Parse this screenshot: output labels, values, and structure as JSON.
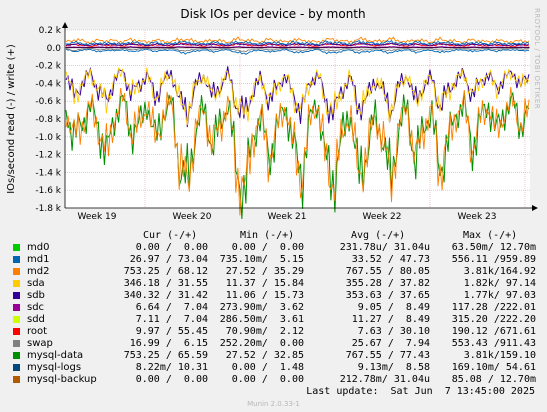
{
  "side_label": "RRDTOOL / TOBI OETIKER",
  "footer": "Munin 2.0.33-1",
  "last_update": "Last update:  Sat Jun  7 13:45:00 2025",
  "legend_headers": {
    "cur": "Cur (-/+)",
    "min": "Min (-/+)",
    "avg": "Avg (-/+)",
    "max": "Max (-/+)"
  },
  "legend": [
    {
      "name": "md0",
      "color": "#00cc00",
      "cur": "0.00 /  0.00",
      "min": "0.00 /  0.00",
      "avg": "231.78u/ 31.04u",
      "max": "63.50m/ 12.70m"
    },
    {
      "name": "md1",
      "color": "#0066b3",
      "cur": "26.97 / 73.04",
      "min": "735.10m/  5.15",
      "avg": "33.52 / 47.73",
      "max": "556.11 /959.89"
    },
    {
      "name": "md2",
      "color": "#ff8000",
      "cur": "753.25 / 68.12",
      "min": "27.52 / 35.29",
      "avg": "767.55 / 80.05",
      "max": "3.81k/164.92"
    },
    {
      "name": "sda",
      "color": "#ffcc00",
      "cur": "346.18 / 31.55",
      "min": "11.37 / 15.84",
      "avg": "355.28 / 37.82",
      "max": "1.82k/ 97.14"
    },
    {
      "name": "sdb",
      "color": "#330099",
      "cur": "340.32 / 31.42",
      "min": "11.06 / 15.73",
      "avg": "353.63 / 37.65",
      "max": "1.77k/ 97.03"
    },
    {
      "name": "sdc",
      "color": "#990099",
      "cur": "6.64 /  7.04",
      "min": "273.90m/  3.62",
      "avg": "9.05 /  8.49",
      "max": "117.28 /222.01"
    },
    {
      "name": "sdd",
      "color": "#ccff00",
      "cur": "7.11 /  7.04",
      "min": "286.50m/  3.61",
      "avg": "11.27 /  8.49",
      "max": "315.20 /222.20"
    },
    {
      "name": "root",
      "color": "#ff0000",
      "cur": "9.97 / 55.45",
      "min": "70.90m/  2.12",
      "avg": "7.63 / 30.10",
      "max": "190.12 /671.61"
    },
    {
      "name": "swap",
      "color": "#808080",
      "cur": "16.99 /  6.15",
      "min": "252.20m/  0.00",
      "avg": "25.67 /  7.94",
      "max": "553.43 /911.43"
    },
    {
      "name": "mysql-data",
      "color": "#008f00",
      "cur": "753.25 / 65.59",
      "min": "27.52 / 32.85",
      "avg": "767.55 / 77.43",
      "max": "3.81k/159.10"
    },
    {
      "name": "mysql-logs",
      "color": "#00487d",
      "cur": "8.22m/ 10.31",
      "min": "0.00 /  1.48",
      "avg": "9.13m/  8.58",
      "max": "169.10m/ 54.61"
    },
    {
      "name": "mysql-backup",
      "color": "#b35a00",
      "cur": "0.00 /  0.00",
      "min": "0.00 /  0.00",
      "avg": "212.78m/ 31.04u",
      "max": "85.08 / 12.70m"
    }
  ],
  "chart_data": {
    "type": "line",
    "title": "Disk IOs per device - by month",
    "ylabel": "IOs/second read (-) / write (+)",
    "xlabel": "",
    "ylim": [
      -1800,
      200
    ],
    "yticks": [
      {
        "v": 200,
        "l": "0.2 k"
      },
      {
        "v": 0,
        "l": "0.0"
      },
      {
        "v": -200,
        "l": "-0.2 k"
      },
      {
        "v": -400,
        "l": "-0.4 k"
      },
      {
        "v": -600,
        "l": "-0.6 k"
      },
      {
        "v": -800,
        "l": "-0.8 k"
      },
      {
        "v": -1000,
        "l": "-1.0 k"
      },
      {
        "v": -1200,
        "l": "-1.2 k"
      },
      {
        "v": -1400,
        "l": "-1.4 k"
      },
      {
        "v": -1600,
        "l": "-1.6 k"
      },
      {
        "v": -1800,
        "l": "-1.8 k"
      }
    ],
    "xticks": [
      "Week 19",
      "Week 20",
      "Week 21",
      "Week 22",
      "Week 23"
    ],
    "grid": true,
    "series": [
      {
        "name": "mysql-data",
        "color": "#008f00",
        "role": "read",
        "samples": [
          -700,
          -1000,
          -850,
          -650,
          -900,
          -1200,
          -780,
          -560,
          -950,
          -880,
          -620,
          -1050,
          -740,
          -600,
          -1350,
          -1520,
          -900,
          -680,
          -1100,
          -870,
          -600,
          -1400,
          -1650,
          -1000,
          -760,
          -1250,
          -900,
          -640,
          -1100,
          -1480,
          -820,
          -600,
          -1300,
          -1520,
          -980,
          -700,
          -1450,
          -1200,
          -760,
          -1000,
          -1520,
          -880,
          -640,
          -1300,
          -900,
          -700,
          -1400,
          -1050,
          -760,
          -620,
          -1150,
          -800,
          -650,
          -950,
          -720,
          -600,
          -880,
          -700
        ]
      },
      {
        "name": "md2",
        "color": "#ff8000",
        "role": "read",
        "samples": [
          -700,
          -1000,
          -850,
          -650,
          -900,
          -1200,
          -780,
          -560,
          -950,
          -880,
          -620,
          -1050,
          -740,
          -600,
          -1350,
          -1520,
          -900,
          -680,
          -1100,
          -870,
          -600,
          -1400,
          -1650,
          -1000,
          -760,
          -1250,
          -900,
          -640,
          -1100,
          -1480,
          -820,
          -600,
          -1300,
          -1520,
          -980,
          -700,
          -1450,
          -1200,
          -760,
          -1000,
          -1520,
          -880,
          -640,
          -1300,
          -900,
          -700,
          -1400,
          -1050,
          -760,
          -620,
          -1150,
          -800,
          -650,
          -950,
          -720,
          -600,
          -880,
          -700
        ]
      },
      {
        "name": "sdb",
        "color": "#330099",
        "role": "read",
        "samples": [
          -300,
          -550,
          -400,
          -280,
          -480,
          -600,
          -350,
          -250,
          -520,
          -420,
          -300,
          -560,
          -380,
          -280,
          -600,
          -720,
          -420,
          -300,
          -560,
          -430,
          -280,
          -650,
          -760,
          -480,
          -340,
          -600,
          -440,
          -300,
          -560,
          -700,
          -400,
          -280,
          -620,
          -720,
          -470,
          -320,
          -680,
          -580,
          -360,
          -480,
          -720,
          -420,
          -300,
          -620,
          -430,
          -330,
          -660,
          -500,
          -360,
          -290,
          -540,
          -380,
          -300,
          -460,
          -340,
          -280,
          -420,
          -330
        ]
      },
      {
        "name": "sda",
        "color": "#ffcc00",
        "role": "read",
        "samples": [
          -300,
          -550,
          -400,
          -280,
          -480,
          -600,
          -350,
          -250,
          -520,
          -420,
          -300,
          -560,
          -380,
          -280,
          -600,
          -720,
          -420,
          -300,
          -560,
          -430,
          -280,
          -650,
          -760,
          -480,
          -340,
          -600,
          -440,
          -300,
          -560,
          -700,
          -400,
          -280,
          -620,
          -720,
          -470,
          -320,
          -680,
          -580,
          -360,
          -480,
          -720,
          -420,
          -300,
          -620,
          -430,
          -330,
          -660,
          -500,
          -360,
          -290,
          -540,
          -380,
          -300,
          -460,
          -340,
          -280,
          -420,
          -330
        ]
      },
      {
        "name": "md1",
        "color": "#0066b3",
        "role": "read",
        "samples": [
          -20,
          -40,
          -30,
          -15,
          -50,
          -25,
          -35,
          -20,
          -45,
          -30,
          -18,
          -40,
          -28,
          -22,
          -48,
          -60,
          -35,
          -22,
          -45,
          -30,
          -20,
          -55,
          -65,
          -38,
          -25,
          -50,
          -32,
          -22,
          -44,
          -58,
          -30,
          -20,
          -52,
          -60,
          -36,
          -24,
          -56,
          -46,
          -28,
          -38,
          -60,
          -32,
          -22,
          -50,
          -34,
          -26,
          -54,
          -40,
          -28,
          -22,
          -44,
          -30,
          -24,
          -36,
          -26,
          -22,
          -34,
          -26
        ]
      },
      {
        "name": "swap",
        "color": "#808080",
        "role": "read",
        "samples": [
          -10,
          -30,
          -15,
          -5,
          -25,
          -12,
          -20,
          -8,
          -22,
          -14,
          -6,
          -18,
          -12,
          -8,
          -26,
          -35,
          -15,
          -9,
          -22,
          -14,
          -8,
          -30,
          -38,
          -18,
          -10,
          -26,
          -15,
          -9,
          -20,
          -32,
          -12,
          -8,
          -28,
          -33,
          -16,
          -10,
          -30,
          -22,
          -12,
          -18,
          -34,
          -14,
          -9,
          -26,
          -15,
          -10,
          -28,
          -19,
          -12,
          -9,
          -22,
          -13,
          -10,
          -17,
          -11,
          -9,
          -15,
          -11
        ]
      },
      {
        "name": "root",
        "color": "#ff0000",
        "role": "write",
        "samples": [
          20,
          40,
          28,
          15,
          35,
          22,
          30,
          18,
          45,
          26,
          16,
          38,
          24,
          20,
          50,
          35,
          28,
          18,
          42,
          25,
          18,
          48,
          36,
          26,
          20,
          44,
          28,
          18,
          40,
          34,
          24,
          16,
          46,
          36,
          28,
          20,
          48,
          40,
          22,
          30,
          52,
          28,
          18,
          44,
          26,
          20,
          46,
          32,
          24,
          18,
          40,
          26,
          20,
          34,
          22,
          18,
          30,
          24
        ]
      },
      {
        "name": "sdc",
        "color": "#990099",
        "role": "write",
        "samples": [
          5,
          10,
          7,
          4,
          9,
          6,
          8,
          5,
          12,
          7,
          4,
          10,
          6,
          5,
          13,
          9,
          7,
          5,
          11,
          7,
          5,
          12,
          9,
          7,
          5,
          11,
          7,
          5,
          10,
          9,
          6,
          4,
          12,
          9,
          7,
          5,
          12,
          10,
          6,
          8,
          13,
          7,
          5,
          11,
          7,
          5,
          12,
          8,
          6,
          5,
          10,
          7,
          5,
          9,
          6,
          5,
          8,
          6
        ]
      },
      {
        "name": "md2",
        "color": "#ff8000",
        "role": "write",
        "samples": [
          70,
          90,
          80,
          60,
          85,
          75,
          82,
          65,
          95,
          78,
          62,
          88,
          72,
          66,
          100,
          86,
          78,
          64,
          92,
          76,
          64,
          98,
          88,
          78,
          66,
          94,
          80,
          64,
          90,
          84,
          74,
          62,
          96,
          88,
          78,
          66,
          98,
          90,
          70,
          80,
          100,
          78,
          64,
          94,
          76,
          66,
          96,
          82,
          72,
          64,
          90,
          76,
          66,
          84,
          72,
          64,
          80,
          72
        ]
      },
      {
        "name": "sdb",
        "color": "#330099",
        "role": "write",
        "samples": [
          30,
          42,
          36,
          28,
          40,
          34,
          38,
          30,
          44,
          36,
          28,
          41,
          33,
          30,
          46,
          40,
          36,
          29,
          43,
          35,
          29,
          45,
          41,
          36,
          30,
          44,
          37,
          29,
          42,
          39,
          34,
          28,
          45,
          41,
          36,
          30,
          46,
          42,
          32,
          37,
          47,
          36,
          29,
          44,
          35,
          30,
          45,
          38,
          33,
          29,
          42,
          35,
          30,
          39,
          33,
          29,
          37,
          33
        ]
      },
      {
        "name": "md1",
        "color": "#0066b3",
        "role": "write",
        "samples": [
          45,
          60,
          50,
          40,
          58,
          48,
          55,
          42,
          66,
          52,
          40,
          62,
          48,
          44,
          70,
          58,
          52,
          42,
          64,
          50,
          42,
          68,
          60,
          52,
          44,
          66,
          54,
          42,
          62,
          56,
          48,
          40,
          68,
          60,
          52,
          44,
          70,
          62,
          46,
          54,
          72,
          52,
          42,
          66,
          50,
          44,
          68,
          56,
          48,
          42,
          62,
          50,
          44,
          58,
          48,
          42,
          54,
          48
        ]
      }
    ]
  }
}
